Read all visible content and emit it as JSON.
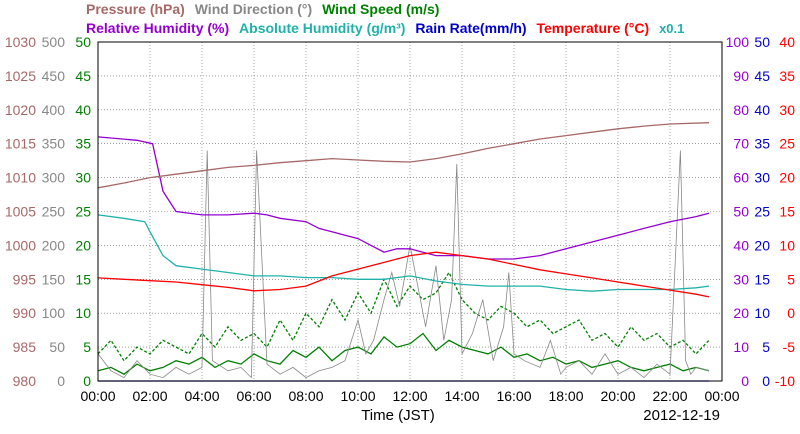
{
  "legend_row1": [
    {
      "label": "Pressure (hPa)",
      "color": "#a86868"
    },
    {
      "label": "Wind Direction (°)",
      "color": "#888888"
    },
    {
      "label": "Wind Speed (m/s)",
      "color": "#008000"
    }
  ],
  "legend_row2": [
    {
      "label": "Relative Humidity (%)",
      "color": "#9400d3"
    },
    {
      "label": "Absolute Humidity (g/m³)",
      "color": "#20b2aa"
    },
    {
      "label": "Rain Rate(mm/h)",
      "color": "#0000cd"
    },
    {
      "label": "Temperature (°C)",
      "color": "#ff0000"
    },
    {
      "label": "x0.1",
      "color": "#20b2aa"
    }
  ],
  "chart_data": {
    "type": "line",
    "xlabel": "Time (JST)",
    "date": "2012-12-19",
    "x_ticks": [
      "00:00",
      "02:00",
      "04:00",
      "06:00",
      "08:00",
      "10:00",
      "12:00",
      "14:00",
      "16:00",
      "18:00",
      "20:00",
      "22:00",
      "00:00"
    ],
    "xlim_hours": [
      0,
      24
    ],
    "grid": true,
    "axes": {
      "pressure": {
        "ticks": [
          "1030",
          "1025",
          "1020",
          "1015",
          "1010",
          "1005",
          "1000",
          "995",
          "990",
          "985",
          "980"
        ],
        "color": "#a86868",
        "side": "left"
      },
      "wind_dir": {
        "ticks": [
          "500",
          "450",
          "400",
          "350",
          "300",
          "250",
          "200",
          "150",
          "100",
          "50",
          "0"
        ],
        "color": "#888888",
        "side": "left"
      },
      "wind_speed": {
        "ticks": [
          "50",
          "45",
          "40",
          "35",
          "30",
          "25",
          "20",
          "15",
          "10",
          "5",
          "0"
        ],
        "color": "#008000",
        "side": "left"
      },
      "humidity": {
        "ticks": [
          "100",
          "90",
          "80",
          "70",
          "60",
          "50",
          "40",
          "30",
          "20",
          "10",
          "0"
        ],
        "color": "#9400d3",
        "side": "right"
      },
      "rain_rate": {
        "ticks": [
          "50",
          "45",
          "40",
          "35",
          "30",
          "25",
          "20",
          "15",
          "10",
          "5",
          "0"
        ],
        "color": "#0000cd",
        "side": "right"
      },
      "temperature": {
        "ticks": [
          "40",
          "35",
          "30",
          "25",
          "20",
          "15",
          "10",
          "5",
          "0",
          "-5",
          "-10"
        ],
        "color": "#ff0000",
        "side": "right"
      }
    },
    "series": [
      {
        "name": "Pressure",
        "unit": "hPa",
        "color": "#a86868",
        "ylim": [
          980,
          1030
        ],
        "x": [
          0,
          1,
          2,
          3,
          4,
          5,
          6,
          7,
          8,
          9,
          10,
          11,
          12,
          13,
          14,
          15,
          16,
          17,
          18,
          19,
          20,
          21,
          22,
          23.5
        ],
        "y": [
          1008.5,
          1009.2,
          1010.0,
          1010.5,
          1011.0,
          1011.5,
          1011.8,
          1012.2,
          1012.5,
          1012.8,
          1012.6,
          1012.4,
          1012.3,
          1012.8,
          1013.5,
          1014.3,
          1015.0,
          1015.7,
          1016.2,
          1016.7,
          1017.2,
          1017.6,
          1017.9,
          1018.1
        ]
      },
      {
        "name": "Relative Humidity",
        "unit": "%",
        "color": "#9400d3",
        "ylim": [
          0,
          100
        ],
        "x": [
          0,
          1.5,
          2.1,
          2.5,
          3,
          4,
          5,
          6,
          6.5,
          7,
          8,
          8.5,
          9,
          9.5,
          10,
          10.5,
          11,
          11.5,
          12,
          12.5,
          13,
          14,
          15,
          16,
          17,
          18,
          19,
          20,
          21,
          22,
          23,
          23.5
        ],
        "y": [
          72,
          71,
          70,
          56,
          50,
          49,
          49,
          49.5,
          49,
          48,
          47,
          45,
          44,
          43,
          42,
          40,
          38,
          39,
          39,
          38,
          37,
          37,
          36,
          36,
          37,
          39,
          41,
          43,
          45,
          47,
          48.5,
          49.5
        ]
      },
      {
        "name": "Absolute Humidity",
        "unit": "g/m³ x0.1",
        "color": "#20b2aa",
        "ylim": [
          0,
          100
        ],
        "x": [
          0,
          1,
          1.8,
          2,
          2.5,
          3,
          4,
          5,
          6,
          7,
          8,
          9,
          10,
          11,
          12,
          13,
          14,
          15,
          16,
          17,
          18,
          19,
          20,
          21,
          22,
          23,
          23.5
        ],
        "y": [
          49,
          48,
          47,
          44,
          37,
          34,
          33,
          32,
          31,
          31,
          30.5,
          30.5,
          30,
          30,
          31,
          29.5,
          28.5,
          28,
          28,
          28,
          27,
          26.5,
          27,
          27,
          27,
          27.5,
          28
        ]
      },
      {
        "name": "Temperature",
        "unit": "°C",
        "color": "#ff0000",
        "ylim": [
          -10,
          40
        ],
        "x": [
          0,
          1,
          2,
          3,
          4,
          5,
          6,
          7,
          8,
          9,
          10,
          11,
          12,
          13,
          14,
          15,
          16,
          17,
          18,
          19,
          20,
          21,
          22,
          23,
          23.5
        ],
        "y": [
          5.2,
          5.0,
          4.8,
          4.6,
          4.2,
          3.8,
          3.3,
          3.5,
          4.0,
          5.5,
          6.5,
          7.5,
          8.5,
          9.0,
          8.5,
          8.0,
          7.2,
          6.4,
          5.8,
          5.2,
          4.6,
          4.0,
          3.4,
          2.8,
          2.4
        ]
      },
      {
        "name": "Rain Rate",
        "unit": "mm/h",
        "color": "#0000cd",
        "ylim": [
          0,
          50
        ],
        "x": [
          0,
          23.5
        ],
        "y": [
          0,
          0
        ]
      },
      {
        "name": "Wind Direction",
        "unit": "°",
        "color": "#888888",
        "ylim": [
          0,
          500
        ],
        "x": [
          0,
          0.5,
          1,
          1.5,
          2,
          2.5,
          3,
          3.5,
          4,
          4.2,
          4.4,
          5,
          5.5,
          5.9,
          6.1,
          6.5,
          7,
          7.5,
          8,
          8.5,
          9,
          9.5,
          10,
          10.3,
          10.6,
          11,
          11.3,
          11.6,
          12,
          12.3,
          12.6,
          13,
          13.3,
          13.6,
          13.8,
          14,
          14.4,
          14.8,
          15.2,
          15.6,
          15.8,
          16,
          16.4,
          17,
          17.4,
          17.8,
          18,
          18.5,
          19,
          19.5,
          20,
          20.5,
          21,
          21.5,
          22,
          22.4,
          22.6,
          22.8,
          23,
          23.5
        ],
        "y": [
          40,
          15,
          5,
          30,
          10,
          5,
          20,
          10,
          20,
          340,
          30,
          15,
          20,
          5,
          340,
          25,
          10,
          20,
          5,
          15,
          20,
          30,
          90,
          40,
          60,
          120,
          160,
          110,
          200,
          140,
          80,
          170,
          60,
          120,
          320,
          40,
          70,
          120,
          30,
          80,
          160,
          40,
          30,
          20,
          60,
          10,
          20,
          30,
          10,
          40,
          10,
          20,
          5,
          25,
          10,
          340,
          30,
          10,
          20,
          15
        ]
      },
      {
        "name": "Wind Speed",
        "unit": "m/s",
        "color": "#008000",
        "ylim": [
          0,
          50
        ],
        "x": [
          0,
          0.5,
          1,
          1.5,
          2,
          2.5,
          3,
          3.5,
          4,
          4.5,
          5,
          5.5,
          6,
          6.5,
          7,
          7.5,
          8,
          8.5,
          9,
          9.5,
          10,
          10.5,
          11,
          11.5,
          12,
          12.5,
          13,
          13.5,
          14,
          14.5,
          15,
          15.5,
          16,
          16.5,
          17,
          17.5,
          18,
          18.5,
          19,
          19.5,
          20,
          20.5,
          21,
          21.5,
          22,
          22.5,
          23,
          23.5
        ],
        "y": [
          1.5,
          2.0,
          1.0,
          2.5,
          1.5,
          2.0,
          3.0,
          2.5,
          3.5,
          2.0,
          3.0,
          2.5,
          4.0,
          3.0,
          2.5,
          4.5,
          3.5,
          5.0,
          3.0,
          4.5,
          5.0,
          4.0,
          6.5,
          5.0,
          5.5,
          7.0,
          4.5,
          6.0,
          5.0,
          4.5,
          4.0,
          5.0,
          3.5,
          4.0,
          3.0,
          3.5,
          2.5,
          3.0,
          2.0,
          2.5,
          3.0,
          2.0,
          1.5,
          2.0,
          2.5,
          1.5,
          2.0,
          1.5
        ]
      },
      {
        "name": "Wind Speed (gust)",
        "unit": "m/s",
        "color": "#008000",
        "dashed": true,
        "ylim": [
          0,
          50
        ],
        "x": [
          0,
          0.5,
          1,
          1.5,
          2,
          2.5,
          3,
          3.5,
          4,
          4.5,
          5,
          5.5,
          6,
          6.5,
          7,
          7.5,
          8,
          8.5,
          9,
          9.5,
          10,
          10.5,
          11,
          11.5,
          12,
          12.5,
          13,
          13.5,
          14,
          14.5,
          15,
          15.5,
          16,
          16.5,
          17,
          17.5,
          18,
          18.5,
          19,
          19.5,
          20,
          20.5,
          21,
          21.5,
          22,
          22.5,
          23,
          23.5
        ],
        "y": [
          4,
          6,
          3,
          5,
          4,
          6,
          5,
          4,
          7,
          5,
          8,
          6,
          7,
          5,
          9,
          6,
          10,
          8,
          12,
          9,
          13,
          10,
          15,
          11,
          14,
          12,
          13,
          16,
          12,
          10,
          9,
          11,
          10,
          8,
          9,
          7,
          8,
          9,
          6,
          7,
          5,
          8,
          6,
          7,
          5,
          6,
          4,
          6
        ]
      }
    ]
  }
}
